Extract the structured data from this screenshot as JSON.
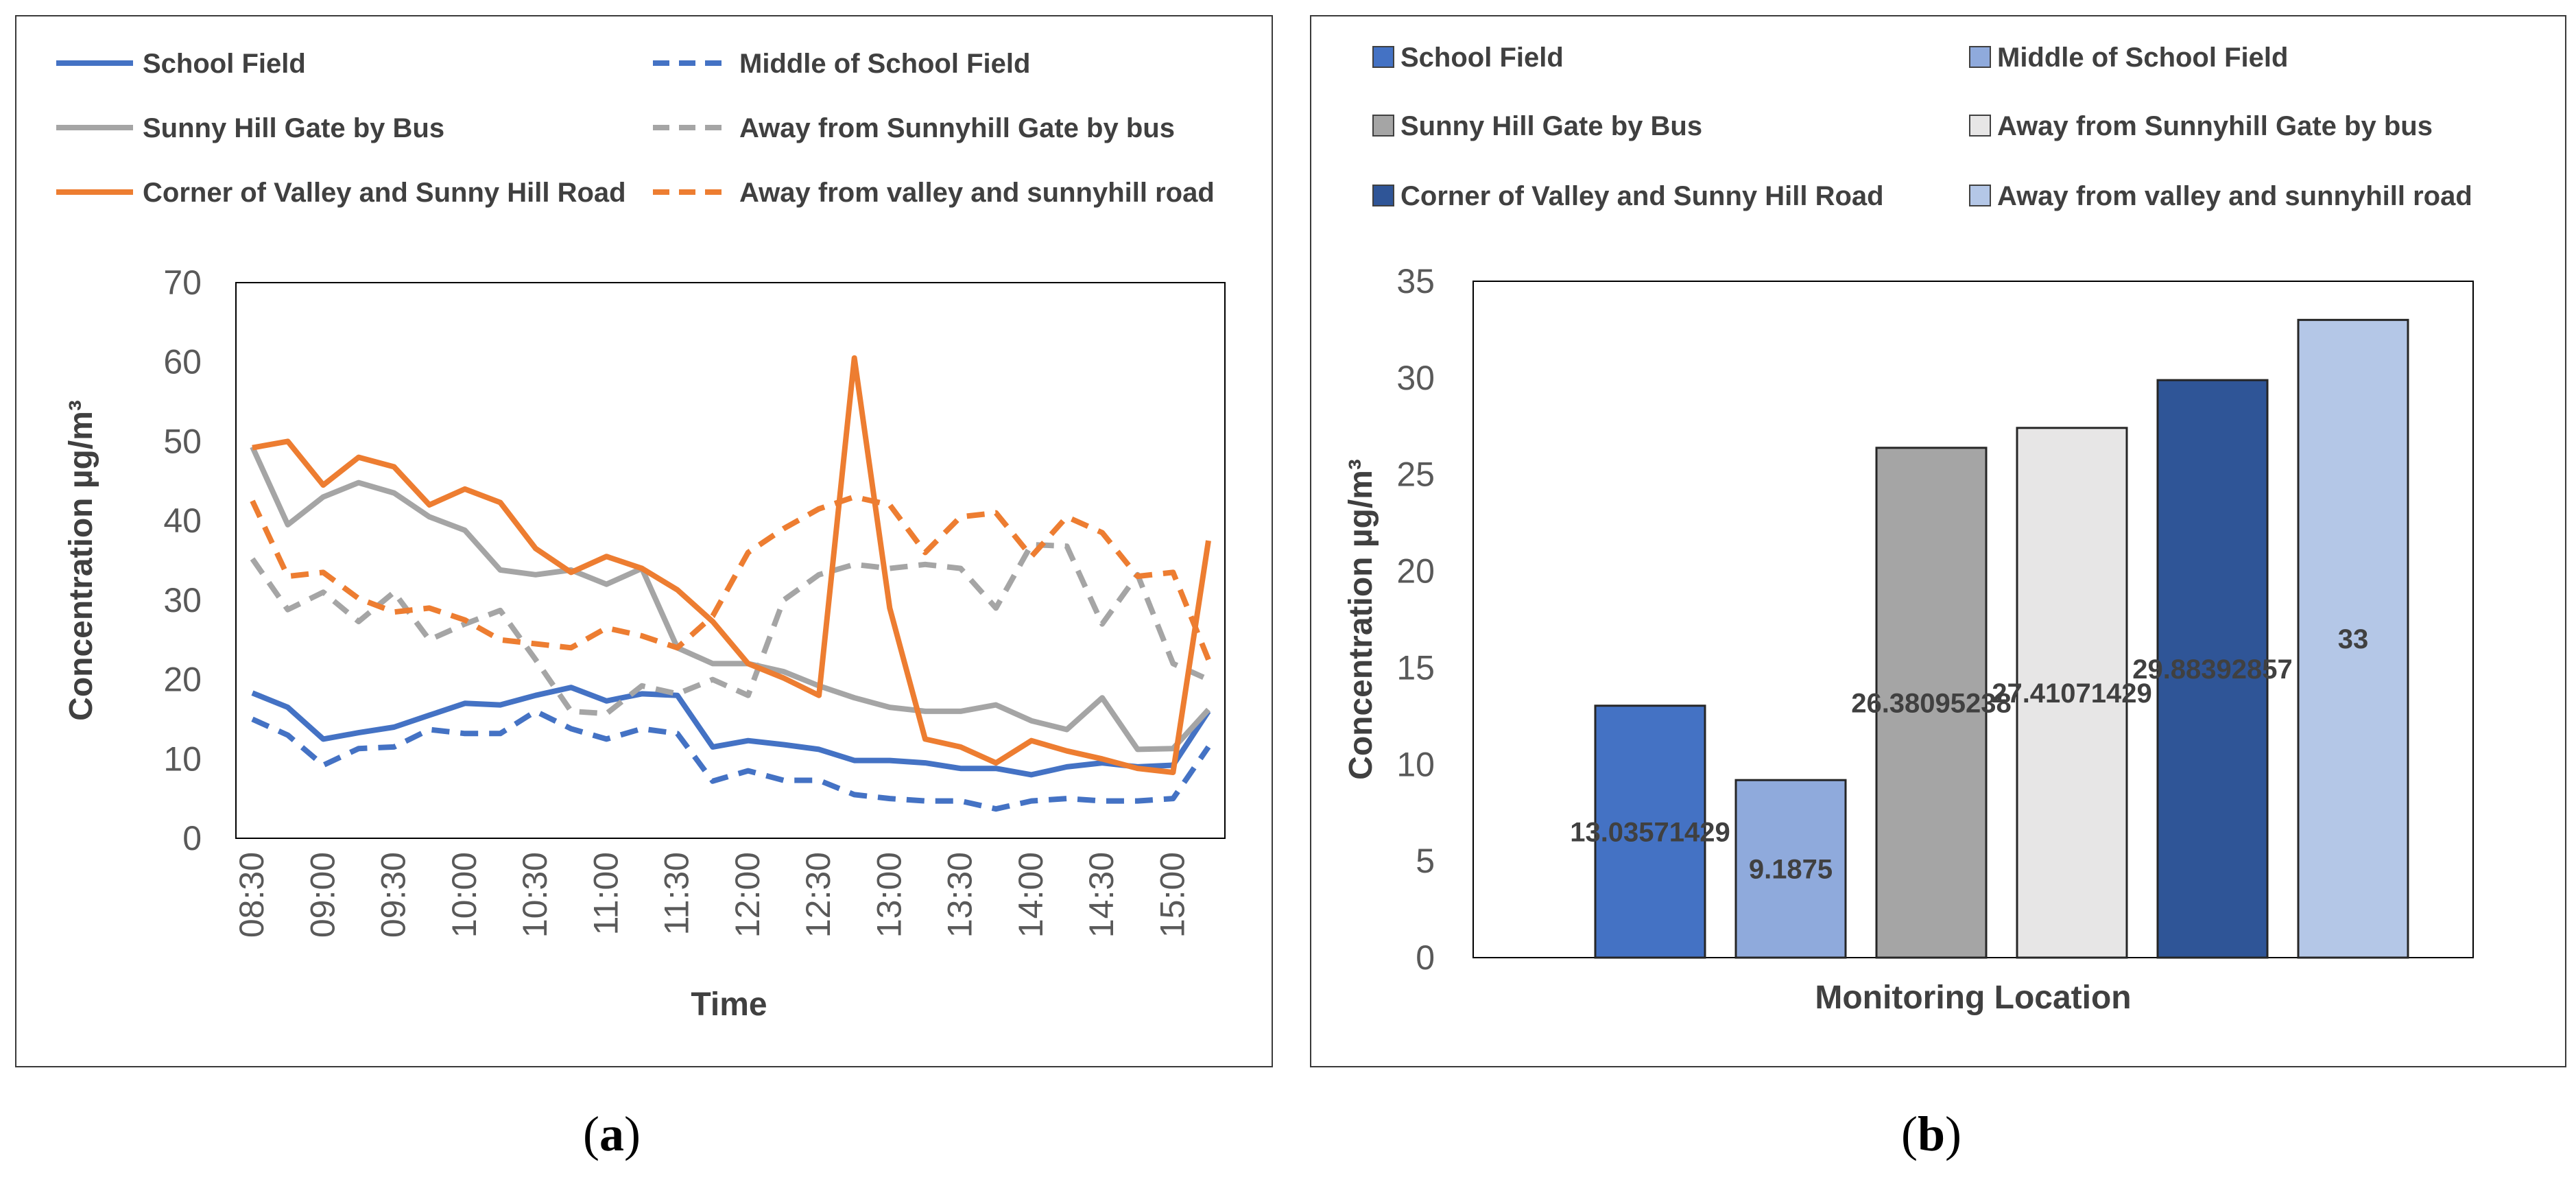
{
  "captions": {
    "a": "a",
    "b": "b"
  },
  "chart_data": [
    {
      "type": "line",
      "xlabel": "Time",
      "ylabel": "Concentration  µg/m³",
      "ylim": [
        0,
        70
      ],
      "yticks": [
        0,
        10,
        20,
        30,
        40,
        50,
        60,
        70
      ],
      "x": [
        "08:30",
        "08:45",
        "09:00",
        "09:15",
        "09:30",
        "09:45",
        "10:00",
        "10:15",
        "10:30",
        "10:45",
        "11:00",
        "11:15",
        "11:30",
        "11:45",
        "12:00",
        "12:15",
        "12:30",
        "12:45",
        "13:00",
        "13:15",
        "13:30",
        "13:45",
        "14:00",
        "14:15",
        "14:30",
        "14:45",
        "15:00",
        "15:15"
      ],
      "xtick_labels": [
        "08:30",
        "09:00",
        "09:30",
        "10:00",
        "10:30",
        "11:00",
        "11:30",
        "12:00",
        "12:30",
        "13:00",
        "13:30",
        "14:00",
        "14:30",
        "15:00"
      ],
      "legend_position": "top",
      "series": [
        {
          "name": "School Field",
          "color": "#4472C4",
          "dash": false,
          "values": [
            18.3,
            16.5,
            12.5,
            13.3,
            14.0,
            15.5,
            17.0,
            16.8,
            18.0,
            19.0,
            17.3,
            18.2,
            18.0,
            11.5,
            12.3,
            11.8,
            11.2,
            9.8,
            9.8,
            9.5,
            8.8,
            8.8,
            8.0,
            9.0,
            9.5,
            9.0,
            9.2,
            16.0
          ]
        },
        {
          "name": "Middle of School Field",
          "color": "#4472C4",
          "dash": true,
          "values": [
            15.0,
            13.0,
            9.2,
            11.3,
            11.5,
            13.7,
            13.2,
            13.2,
            16.0,
            13.8,
            12.5,
            13.8,
            13.2,
            7.2,
            8.5,
            7.3,
            7.3,
            5.5,
            5.0,
            4.7,
            4.7,
            3.7,
            4.7,
            5.0,
            4.7,
            4.7,
            5.0,
            11.5
          ]
        },
        {
          "name": "Sunny Hill Gate by Bus",
          "color": "#A5A5A5",
          "dash": false,
          "values": [
            49.3,
            39.5,
            43.0,
            44.8,
            43.5,
            40.5,
            38.8,
            33.8,
            33.2,
            33.8,
            32.0,
            34.0,
            24.0,
            22.0,
            22.0,
            21.0,
            19.2,
            17.7,
            16.5,
            16.0,
            16.0,
            16.8,
            14.8,
            13.7,
            17.7,
            11.2,
            11.3,
            16.2
          ]
        },
        {
          "name": "Away from Sunnyhill Gate by  bus",
          "color": "#A5A5A5",
          "dash": true,
          "values": [
            35.2,
            28.8,
            31.0,
            27.3,
            31.0,
            25.0,
            27.0,
            28.7,
            22.5,
            16.0,
            15.7,
            19.2,
            18.2,
            20.0,
            18.0,
            30.0,
            33.2,
            34.5,
            34.0,
            34.5,
            34.0,
            29.0,
            37.0,
            36.8,
            27.0,
            33.2,
            22.0,
            20.0
          ]
        },
        {
          "name": "Corner of Valley and Sunny Hill Road",
          "color": "#ED7D31",
          "dash": false,
          "values": [
            49.2,
            50.0,
            44.5,
            48.0,
            46.8,
            42.0,
            44.0,
            42.3,
            36.5,
            33.5,
            35.5,
            34.0,
            31.3,
            27.3,
            22.0,
            20.2,
            18.0,
            60.5,
            29.0,
            12.5,
            11.5,
            9.5,
            12.3,
            11.0,
            10.0,
            8.8,
            8.3,
            37.5
          ]
        },
        {
          "name": "Away from valley and sunnyhill road",
          "color": "#ED7D31",
          "dash": true,
          "values": [
            42.5,
            33.0,
            33.5,
            30.2,
            28.5,
            29.0,
            27.5,
            25.0,
            24.5,
            24.0,
            26.5,
            25.5,
            24.0,
            28.0,
            36.0,
            39.0,
            41.5,
            43.0,
            42.0,
            36.0,
            40.5,
            41.0,
            35.5,
            40.5,
            38.5,
            33.0,
            33.5,
            22.5
          ]
        }
      ]
    },
    {
      "type": "bar",
      "xlabel": "Monitoring Location",
      "ylabel": "Concentration  µg/m³",
      "ylim": [
        0,
        35
      ],
      "yticks": [
        0,
        5,
        10,
        15,
        20,
        25,
        30,
        35
      ],
      "legend_position": "top",
      "categories": [
        "School Field",
        "Middle of School Field",
        "Sunny Hill Gate by Bus",
        "Away from Sunnyhill Gate by  bus",
        "Corner of Valley and Sunny Hill Road",
        "Away from valley and sunnyhill road"
      ],
      "colors": [
        "#4472C4",
        "#8FAADC",
        "#A5A5A5",
        "#E7E6E6",
        "#2F5597",
        "#B4C7E7"
      ],
      "values": [
        13.03571429,
        9.1875,
        26.38095238,
        27.41071429,
        29.88392857,
        33
      ],
      "data_labels": [
        "13.03571429",
        "9.1875",
        "26.38095238",
        "27.41071429",
        "29.88392857",
        "33"
      ]
    }
  ]
}
